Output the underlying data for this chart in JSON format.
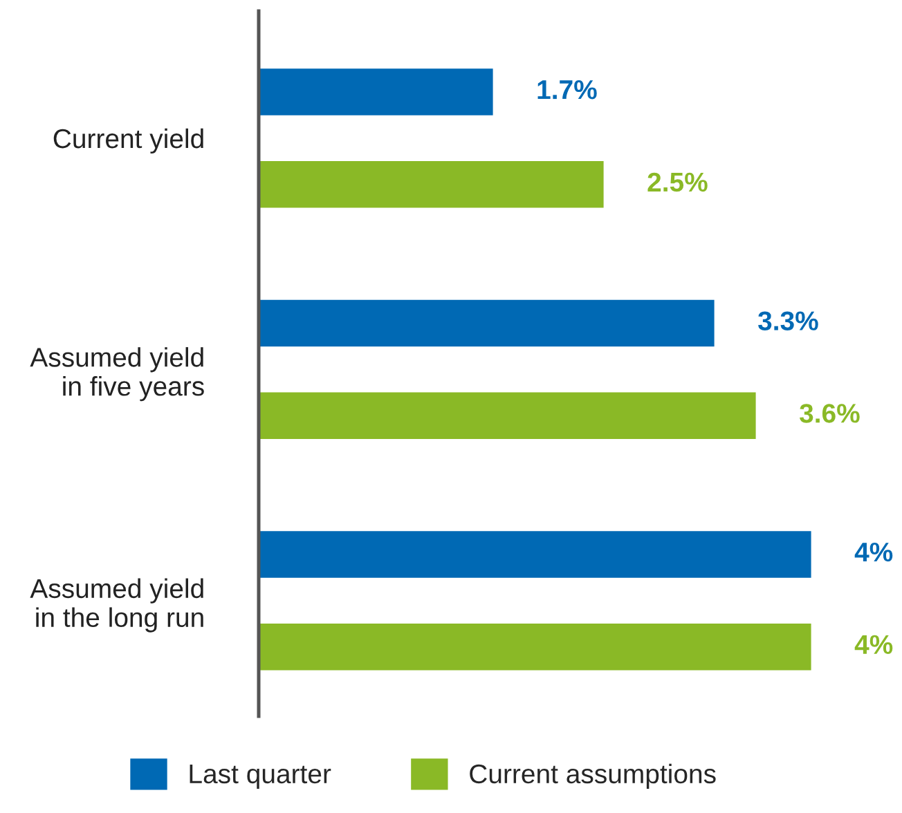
{
  "chart_data": {
    "type": "bar",
    "orientation": "horizontal",
    "categories": [
      "Current yield",
      "Assumed yield\nin five years",
      "Assumed yield\nin the long run"
    ],
    "series": [
      {
        "name": "Last quarter",
        "color": "#0069b4",
        "values": [
          1.7,
          3.3,
          4
        ],
        "value_labels": [
          "1.7%",
          "3.3%",
          "4%"
        ]
      },
      {
        "name": "Current assumptions",
        "color": "#8ab926",
        "values": [
          2.5,
          3.6,
          4
        ],
        "value_labels": [
          "2.5%",
          "3.6%",
          "4%"
        ]
      }
    ],
    "tick_labels": "y",
    "legend": "bottom",
    "grid": false
  }
}
